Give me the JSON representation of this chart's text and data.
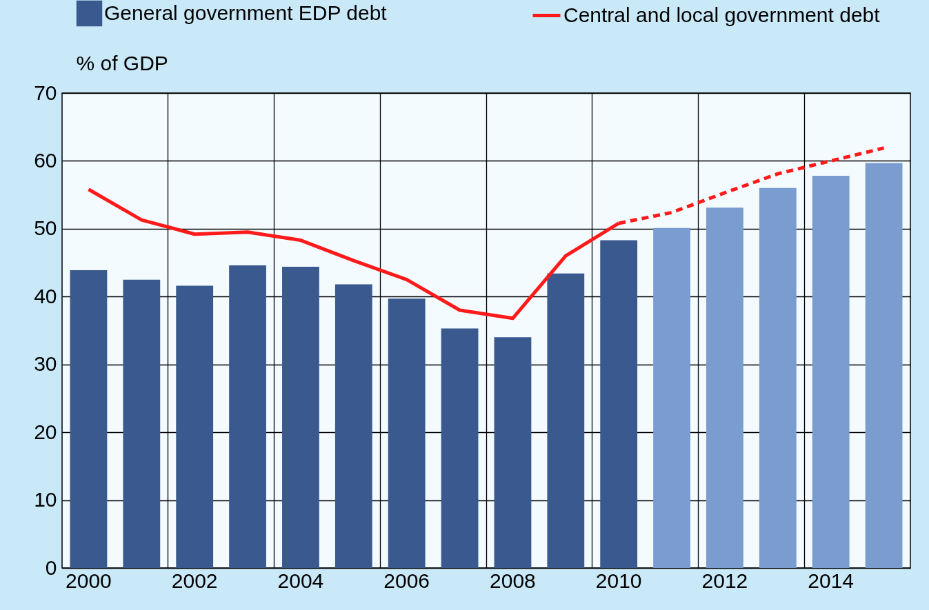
{
  "chart_data": {
    "type": "bar",
    "ylabel": "% of GDP",
    "categories": [
      "2000",
      null,
      "2002",
      null,
      "2004",
      null,
      "2006",
      null,
      "2008",
      null,
      "2010",
      null,
      "2012",
      null,
      "2014",
      null
    ],
    "series": [
      {
        "name": "General government EDP debt",
        "color": "#3a5a8f",
        "colors": [
          "#3a5a8f",
          "#3a5a8f",
          "#3a5a8f",
          "#3a5a8f",
          "#3a5a8f",
          "#3a5a8f",
          "#3a5a8f",
          "#3a5a8f",
          "#3a5a8f",
          "#3a5a8f",
          "#3a5a8f",
          "#7a9ccf",
          "#7a9ccf",
          "#7a9ccf",
          "#7a9ccf",
          "#7a9ccf"
        ],
        "values": [
          43.9,
          42.5,
          41.6,
          44.6,
          44.4,
          41.8,
          39.7,
          35.3,
          34.0,
          43.4,
          48.3,
          50.1,
          53.1,
          56.0,
          57.8,
          59.7
        ]
      },
      {
        "name": "Central and local government debt",
        "type": "line",
        "color": "#ff1a1a",
        "line_style": "solid",
        "values": [
          55.8,
          51.3,
          49.2,
          49.5,
          48.3,
          45.3,
          42.5,
          38.0,
          36.8,
          46.0,
          50.8,
          null,
          null,
          null,
          null,
          null
        ]
      },
      {
        "type": "line",
        "color": "#ff1a1a",
        "line_style": "dashed",
        "values": [
          null,
          null,
          null,
          null,
          null,
          null,
          null,
          null,
          null,
          null,
          50.8,
          52.4,
          55.3,
          58.1,
          60.0,
          61.9
        ]
      }
    ],
    "ylim": [
      0,
      70
    ],
    "yticks": [
      0,
      10,
      20,
      30,
      40,
      50,
      60,
      70
    ],
    "grid": true,
    "legend": "top"
  }
}
